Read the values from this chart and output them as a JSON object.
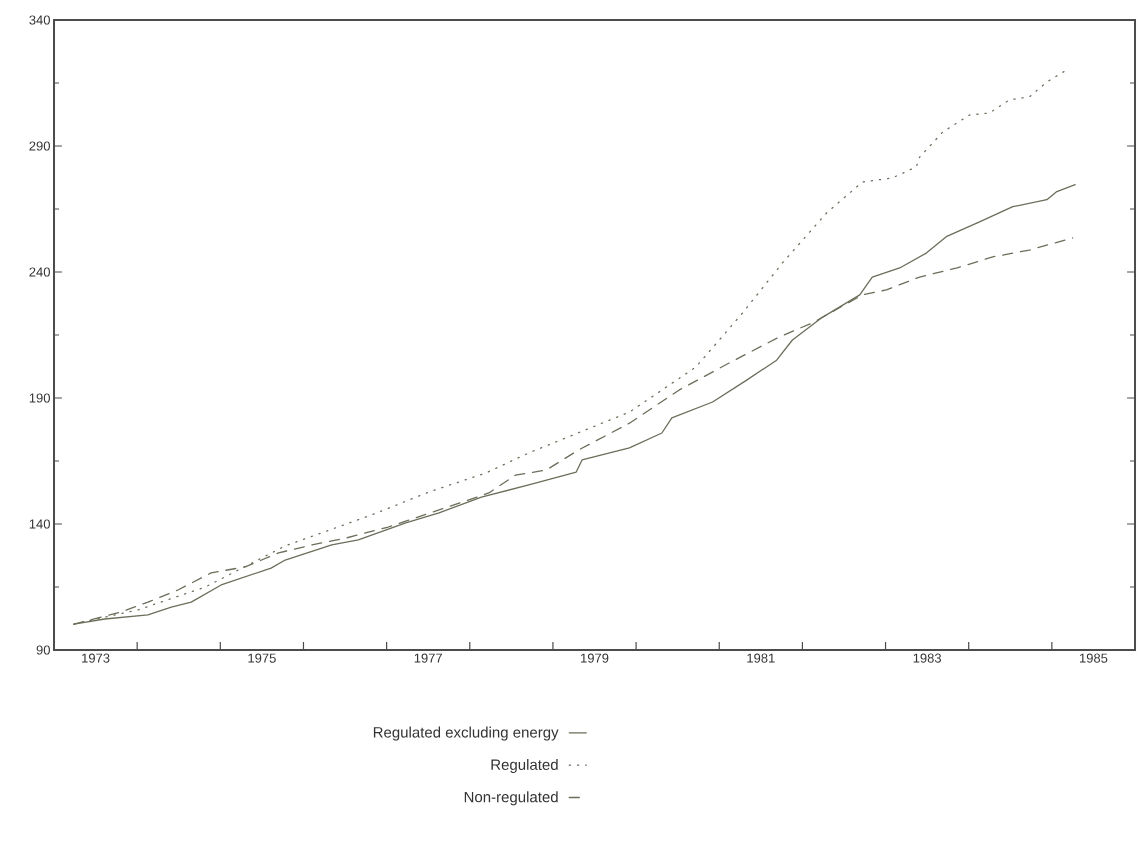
{
  "chart_data": {
    "type": "line",
    "xlim": [
      1973,
      1986
    ],
    "ylim": [
      90,
      340
    ],
    "xticks": [
      {
        "value": 1973.5,
        "label": "1973"
      },
      {
        "value": 1975.5,
        "label": "1975"
      },
      {
        "value": 1977.5,
        "label": "1977"
      },
      {
        "value": 1979.5,
        "label": "1979"
      },
      {
        "value": 1981.5,
        "label": "1981"
      },
      {
        "value": 1983.5,
        "label": "1983"
      },
      {
        "value": 1985.5,
        "label": "1985"
      },
      {
        "value": 1974,
        "label": null
      },
      {
        "value": 1975,
        "label": null
      },
      {
        "value": 1976,
        "label": null
      },
      {
        "value": 1977,
        "label": null
      },
      {
        "value": 1978,
        "label": null
      },
      {
        "value": 1979,
        "label": null
      },
      {
        "value": 1980,
        "label": null
      },
      {
        "value": 1981,
        "label": null
      },
      {
        "value": 1982,
        "label": null
      },
      {
        "value": 1983,
        "label": null
      },
      {
        "value": 1984,
        "label": null
      },
      {
        "value": 1985,
        "label": null
      }
    ],
    "yticks": [
      90,
      140,
      190,
      240,
      290,
      340
    ],
    "legend": "bottom",
    "marker": "none",
    "series": [
      {
        "name": "Regulated excluding energy",
        "color": "#6b6e5a",
        "line_style": "solid",
        "x": [
          1973.24,
          1973.61,
          1974.13,
          1974.41,
          1974.65,
          1975.01,
          1975.61,
          1975.78,
          1976.34,
          1976.66,
          1977.23,
          1977.63,
          1978.14,
          1978.71,
          1979.28,
          1979.35,
          1979.92,
          1980.31,
          1980.43,
          1980.92,
          1981.33,
          1981.69,
          1981.88,
          1982.24,
          1982.69,
          1982.84,
          1983.17,
          1983.49,
          1983.73,
          1984.13,
          1984.53,
          1984.94,
          1985.06,
          1985.28
        ],
        "values": [
          100.3,
          102.3,
          103.9,
          107,
          109,
          115.8,
          122.5,
          125.7,
          131.7,
          133.7,
          140.4,
          144.4,
          150.7,
          155.5,
          160.6,
          165.4,
          170.2,
          176.1,
          182.1,
          188.4,
          197.1,
          205,
          213,
          222,
          230.9,
          238,
          241.6,
          247.5,
          254,
          259.9,
          265.9,
          268.7,
          271.9,
          274.7
        ]
      },
      {
        "name": "Regulated",
        "color": "#6b6e5a",
        "line_style": "dotted",
        "x": [
          1973.24,
          1974.01,
          1974.82,
          1975.78,
          1976.82,
          1977.51,
          1978.19,
          1978.71,
          1979.92,
          1980.72,
          1981.28,
          1981.76,
          1982.29,
          1982.72,
          1983.08,
          1983.37,
          1983.41,
          1983.69,
          1984.01,
          1984.25,
          1984.49,
          1984.73,
          1984.94,
          1985.18
        ],
        "values": [
          100.3,
          105.9,
          115,
          131.3,
          143.6,
          152.7,
          160.2,
          168.2,
          184.4,
          202.3,
          223.7,
          243.6,
          263.4,
          275.7,
          277.3,
          281.7,
          285.6,
          295.6,
          302.3,
          303.1,
          308.3,
          309.5,
          315.4,
          320.2
        ]
      },
      {
        "name": "Non-regulated",
        "color": "#6b6e5a",
        "line_style": "dashed",
        "x": [
          1973.24,
          1973.81,
          1974.13,
          1974.49,
          1974.89,
          1975.3,
          1975.7,
          1976.1,
          1976.51,
          1977.02,
          1977.63,
          1978.23,
          1978.55,
          1978.92,
          1979.31,
          1979.92,
          1980.52,
          1981.12,
          1981.72,
          1982.12,
          1982.72,
          1983.01,
          1983.41,
          1983.86,
          1984.29,
          1984.73,
          1985.25
        ],
        "values": [
          100.3,
          105.1,
          109,
          113.8,
          120.6,
          123,
          128.5,
          131.7,
          134.4,
          138.8,
          145.6,
          152.3,
          159.4,
          161.4,
          169.4,
          180,
          193.2,
          203.9,
          214.2,
          219.8,
          230.9,
          232.9,
          238,
          241.6,
          246,
          248.7,
          253.5
        ]
      }
    ]
  }
}
